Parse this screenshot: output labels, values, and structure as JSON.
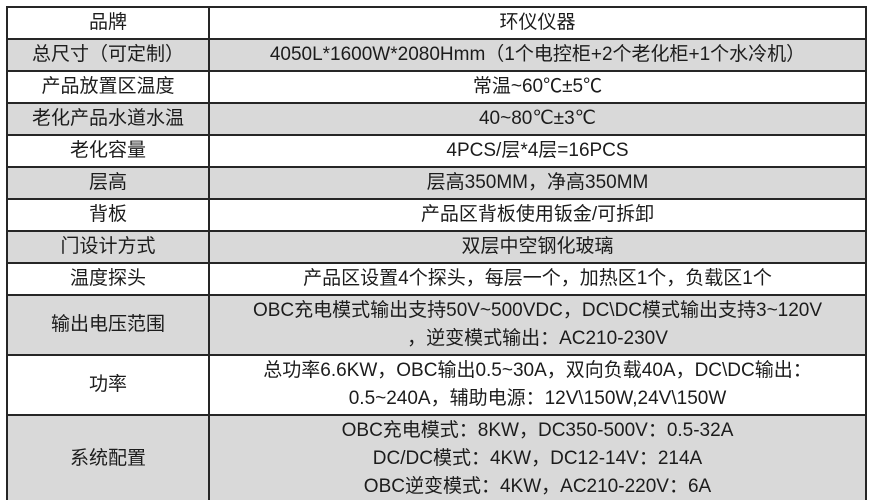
{
  "table": {
    "rows": [
      {
        "label": "品牌",
        "value_lines": [
          "环仪仪器"
        ],
        "shaded": false
      },
      {
        "label": "总尺寸（可定制）",
        "value_lines": [
          "4050L*1600W*2080Hmm（1个电控柜+2个老化柜+1个水冷机）"
        ],
        "shaded": true
      },
      {
        "label": "产品放置区温度",
        "value_lines": [
          "常温~60℃±5℃"
        ],
        "shaded": false
      },
      {
        "label": "老化产品水道水温",
        "value_lines": [
          "40~80℃±3℃"
        ],
        "shaded": true
      },
      {
        "label": "老化容量",
        "value_lines": [
          "4PCS/层*4层=16PCS"
        ],
        "shaded": false
      },
      {
        "label": "层高",
        "value_lines": [
          "层高350MM，净高350MM"
        ],
        "shaded": true
      },
      {
        "label": "背板",
        "value_lines": [
          "产品区背板使用钣金/可拆卸"
        ],
        "shaded": false
      },
      {
        "label": "门设计方式",
        "value_lines": [
          "双层中空钢化玻璃"
        ],
        "shaded": true
      },
      {
        "label": "温度探头",
        "value_lines": [
          "产品区设置4个探头，每层一个，加热区1个，负载区1个"
        ],
        "shaded": false
      },
      {
        "label": "输出电压范围",
        "value_lines": [
          "OBC充电模式输出支持50V~500VDC，DC\\DC模式输出支持3~120V",
          "，逆变模式输出：AC210-230V"
        ],
        "shaded": true
      },
      {
        "label": "功率",
        "value_lines": [
          "总功率6.6KW，OBC输出0.5~30A，双向负载40A，DC\\DC输出：",
          "0.5~240A，辅助电源：12V\\150W,24V\\150W"
        ],
        "shaded": false
      },
      {
        "label": "系统配置",
        "value_lines": [
          "OBC充电模式：8KW，DC350-500V：0.5-32A",
          "DC/DC模式：4KW，DC12-14V：214A",
          "OBC逆变模式：4KW，AC210-220V：6A"
        ],
        "shaded": true
      }
    ]
  },
  "colors": {
    "shaded_row": "#d9d9d9",
    "border": "#262626",
    "text": "#1c1c1c",
    "background": "#ffffff"
  }
}
